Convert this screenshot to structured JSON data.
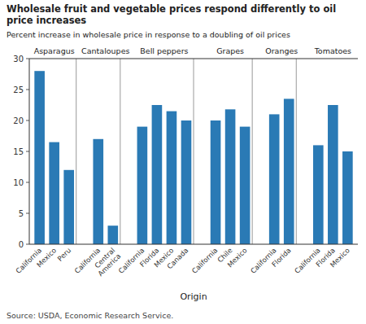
{
  "chart_data": {
    "type": "bar",
    "title": "Wholesale fruit and vegetable prices respond differently to oil price increases",
    "subtitle": "Percent increase in wholesale price in response to a doubling of oil prices",
    "xlabel": "Origin",
    "source": "Source: USDA, Economic Research Service.",
    "color": "#2a7ab5",
    "ylim": [
      0,
      30
    ],
    "yticks": [
      0,
      5,
      10,
      15,
      20,
      25,
      30
    ],
    "groups": [
      {
        "name": "Asparagus",
        "categories": [
          "California",
          "Mexico",
          "Peru"
        ],
        "values": [
          28.0,
          16.5,
          12.0
        ]
      },
      {
        "name": "Cantaloupes",
        "categories": [
          "California",
          "Central\nAmerica"
        ],
        "values": [
          17.0,
          3.0
        ]
      },
      {
        "name": "Bell peppers",
        "categories": [
          "California",
          "Florida",
          "Mexico",
          "Canada"
        ],
        "values": [
          19.0,
          22.5,
          21.5,
          20.0
        ]
      },
      {
        "name": "Grapes",
        "categories": [
          "California",
          "Chile",
          "Mexico"
        ],
        "values": [
          20.0,
          21.8,
          19.0
        ]
      },
      {
        "name": "Oranges",
        "categories": [
          "California",
          "Florida"
        ],
        "values": [
          21.0,
          23.5
        ]
      },
      {
        "name": "Tomatoes",
        "categories": [
          "California",
          "Florida",
          "Mexico"
        ],
        "values": [
          16.0,
          22.5,
          15.0
        ]
      }
    ]
  }
}
